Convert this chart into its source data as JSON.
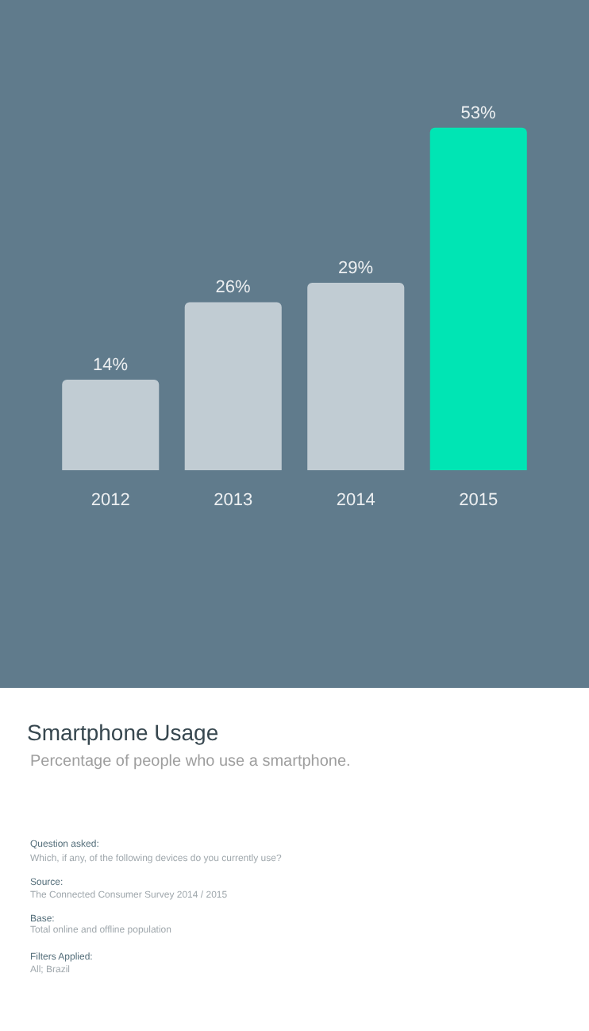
{
  "chart_data": {
    "type": "bar",
    "title": "Smartphone Usage",
    "subtitle": "Percentage of people who use a smartphone.",
    "categories": [
      "2012",
      "2013",
      "2014",
      "2015"
    ],
    "values": [
      14,
      26,
      29,
      53
    ],
    "value_labels": [
      "14%",
      "26%",
      "29%",
      "53%"
    ],
    "colors": [
      "#c1ccd3",
      "#c1ccd3",
      "#c1ccd3",
      "#00e5b4"
    ],
    "tick_labels": "x",
    "grid": false,
    "legend": false,
    "annotations": [
      "Question asked:",
      "Which, if any, of the following devices do you currently use?",
      "Source:",
      "The Connected Consumer Survey 2014 / 2015",
      "Base:",
      "Total online and offline population",
      "Filters Applied:",
      "All; Brazil"
    ]
  }
}
